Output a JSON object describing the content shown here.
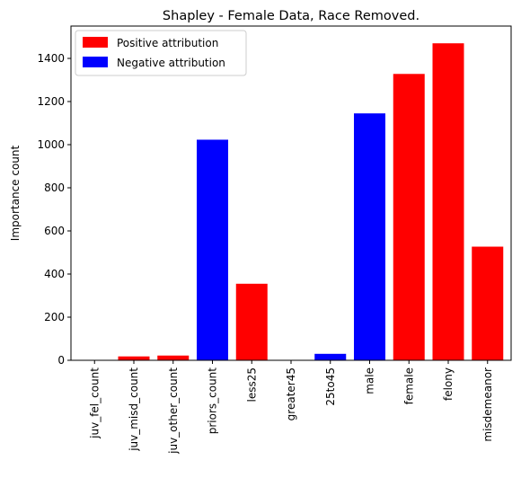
{
  "chart_data": {
    "type": "bar",
    "title": "Shapley - Female Data, Race Removed.",
    "xlabel": "",
    "ylabel": "Importance count",
    "ylim": [
      0,
      1550
    ],
    "yticks": [
      0,
      200,
      400,
      600,
      800,
      1000,
      1200,
      1400
    ],
    "categories": [
      "juv_fel_count",
      "juv_misd_count",
      "juv_other_count",
      "priors_count",
      "less25",
      "greater45",
      "25to45",
      "male",
      "female",
      "felony",
      "misdemeanor"
    ],
    "values": [
      0,
      18,
      22,
      1023,
      355,
      0,
      30,
      1145,
      1328,
      1470,
      527
    ],
    "attribution": [
      "positive",
      "positive",
      "positive",
      "negative",
      "positive",
      "positive",
      "negative",
      "negative",
      "positive",
      "positive",
      "positive"
    ],
    "legend": {
      "position": "top-left",
      "items": [
        {
          "name": "Positive attribution",
          "key": "positive",
          "color": "#ff0000"
        },
        {
          "name": "Negative attribution",
          "key": "negative",
          "color": "#0000ff"
        }
      ]
    },
    "grid": false
  }
}
